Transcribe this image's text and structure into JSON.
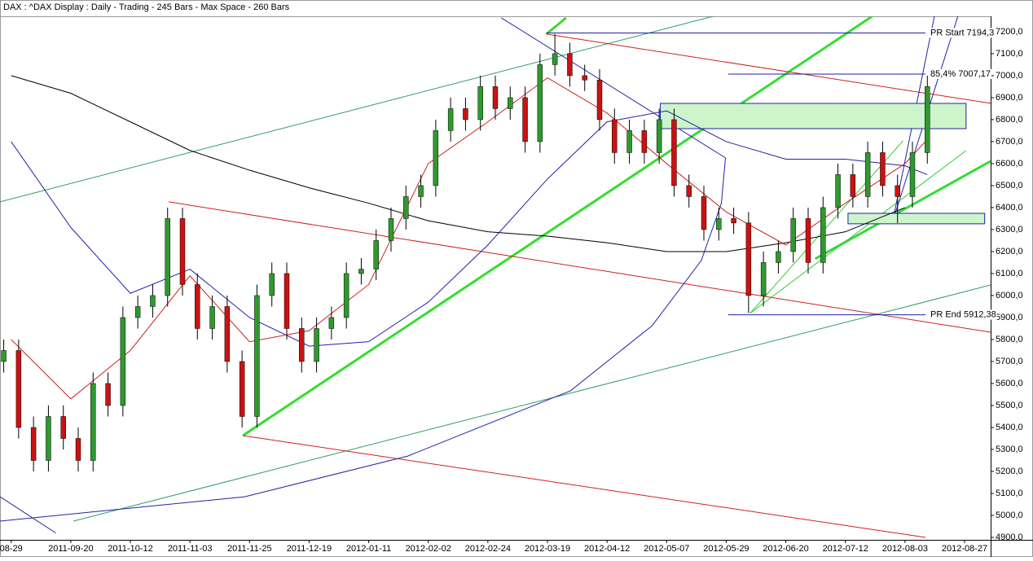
{
  "chart_data": {
    "type": "candlestick",
    "title": "DAX : ^DAX Display :  Daily  - Trading - 245 Bars  - Max Space - 260 Bars",
    "up_color": "#2e9a2e",
    "down_color": "#cc1111",
    "xlim": [
      -3,
      263
    ],
    "ylim": [
      4889,
      7270
    ],
    "xticks": [
      {
        "value": 0,
        "label": "08-29"
      },
      {
        "value": 16,
        "label": "2011-09-20"
      },
      {
        "value": 32,
        "label": "2011-10-12"
      },
      {
        "value": 48,
        "label": "2011-11-03"
      },
      {
        "value": 64,
        "label": "2011-11-25"
      },
      {
        "value": 80,
        "label": "2011-12-19"
      },
      {
        "value": 96,
        "label": "2012-01-11"
      },
      {
        "value": 112,
        "label": "2012-02-02"
      },
      {
        "value": 128,
        "label": "2012-02-24"
      },
      {
        "value": 144,
        "label": "2012-03-19"
      },
      {
        "value": 160,
        "label": "2012-04-12"
      },
      {
        "value": 176,
        "label": "2012-05-07"
      },
      {
        "value": 192,
        "label": "2012-05-29"
      },
      {
        "value": 208,
        "label": "2012-06-20"
      },
      {
        "value": 224,
        "label": "2012-07-12"
      },
      {
        "value": 240,
        "label": "2012-08-03"
      },
      {
        "value": 256,
        "label": "2012-08-27"
      }
    ],
    "yticks": [
      {
        "value": 4900,
        "label": "4900,0"
      },
      {
        "value": 5000,
        "label": "5000,0"
      },
      {
        "value": 5100,
        "label": "5100,0"
      },
      {
        "value": 5200,
        "label": "5200,0"
      },
      {
        "value": 5300,
        "label": "5300,0"
      },
      {
        "value": 5400,
        "label": "5400,0"
      },
      {
        "value": 5500,
        "label": "5500,0"
      },
      {
        "value": 5600,
        "label": "5600,0"
      },
      {
        "value": 5700,
        "label": "5700,0"
      },
      {
        "value": 5800,
        "label": "5800,0"
      },
      {
        "value": 5900,
        "label": "5900,0"
      },
      {
        "value": 6000,
        "label": "6000,0"
      },
      {
        "value": 6100,
        "label": "6100,0"
      },
      {
        "value": 6200,
        "label": "6200,0"
      },
      {
        "value": 6300,
        "label": "6300,0"
      },
      {
        "value": 6400,
        "label": "6400,0"
      },
      {
        "value": 6500,
        "label": "6500,0"
      },
      {
        "value": 6600,
        "label": "6600,0"
      },
      {
        "value": 6700,
        "label": "6700,0"
      },
      {
        "value": 6800,
        "label": "6800,0"
      },
      {
        "value": 6900,
        "label": "6900,0"
      },
      {
        "value": 7000,
        "label": "7000,0"
      },
      {
        "value": 7100,
        "label": "7100,0"
      },
      {
        "value": 7200,
        "label": "7200,0"
      }
    ],
    "x": [
      -2,
      2,
      6,
      10,
      14,
      18,
      22,
      26,
      30,
      34,
      38,
      42,
      46,
      50,
      54,
      58,
      62,
      66,
      70,
      74,
      78,
      82,
      86,
      90,
      94,
      98,
      102,
      106,
      110,
      114,
      118,
      122,
      126,
      130,
      134,
      138,
      142,
      146,
      150,
      154,
      158,
      162,
      166,
      170,
      174,
      178,
      182,
      186,
      190,
      194,
      198,
      202,
      206,
      210,
      214,
      218,
      222,
      226,
      230,
      234,
      238,
      242,
      246
    ],
    "open": [
      5700,
      5750,
      5400,
      5250,
      5450,
      5350,
      5250,
      5600,
      5500,
      5900,
      5950,
      6000,
      6350,
      6050,
      5850,
      5950,
      5700,
      5450,
      6000,
      6100,
      5850,
      5700,
      5850,
      5900,
      6100,
      6120,
      6250,
      6350,
      6450,
      6500,
      6750,
      6850,
      6800,
      6950,
      6850,
      6900,
      6700,
      7050,
      7100,
      7000,
      6980,
      6800,
      6650,
      6750,
      6650,
      6800,
      6500,
      6450,
      6300,
      6350,
      6330,
      6000,
      6150,
      6200,
      6350,
      6150,
      6400,
      6550,
      6450,
      6650,
      6500,
      6450,
      6650
    ],
    "high": [
      5800,
      5800,
      5450,
      5500,
      5500,
      5400,
      5650,
      5650,
      5950,
      6000,
      6050,
      6400,
      6400,
      6100,
      6000,
      6000,
      5750,
      6050,
      6150,
      6150,
      5900,
      5900,
      5950,
      6150,
      6170,
      6300,
      6400,
      6500,
      6550,
      6800,
      6900,
      6900,
      7000,
      7000,
      6950,
      6950,
      7100,
      7190,
      7150,
      7050,
      7030,
      6850,
      6800,
      6800,
      6850,
      6850,
      6550,
      6500,
      6400,
      6400,
      6380,
      6200,
      6250,
      6400,
      6400,
      6450,
      6600,
      6600,
      6700,
      6700,
      6550,
      6700,
      7000
    ],
    "low": [
      5650,
      5350,
      5200,
      5200,
      5300,
      5200,
      5200,
      5450,
      5450,
      5850,
      5900,
      5950,
      6000,
      5800,
      5800,
      5650,
      5400,
      5400,
      5950,
      5800,
      5650,
      5650,
      5800,
      5850,
      6050,
      6070,
      6200,
      6300,
      6400,
      6450,
      6700,
      6750,
      6750,
      6800,
      6800,
      6650,
      6650,
      7000,
      6950,
      6930,
      6750,
      6600,
      6600,
      6600,
      6600,
      6450,
      6400,
      6250,
      6250,
      6280,
      5920,
      5950,
      6100,
      6150,
      6100,
      6100,
      6350,
      6400,
      6400,
      6450,
      6330,
      6400,
      6600
    ],
    "close": [
      5750,
      5400,
      5250,
      5450,
      5350,
      5250,
      5600,
      5500,
      5900,
      5950,
      6000,
      6350,
      6050,
      5850,
      5950,
      5700,
      5450,
      6000,
      6100,
      5850,
      5700,
      5850,
      5900,
      6100,
      6120,
      6250,
      6350,
      6450,
      6500,
      6750,
      6850,
      6800,
      6950,
      6850,
      6900,
      6700,
      7050,
      7100,
      7000,
      6980,
      6800,
      6650,
      6750,
      6650,
      6800,
      6500,
      6450,
      6300,
      6350,
      6330,
      6000,
      6150,
      6200,
      6350,
      6150,
      6400,
      6550,
      6450,
      6650,
      6500,
      6450,
      6650,
      6950
    ],
    "moving_averages": [
      {
        "color": "#000000",
        "x": [
          0,
          16,
          32,
          48,
          64,
          80,
          96,
          112,
          128,
          144,
          160,
          176,
          192,
          208,
          224,
          240
        ],
        "values": [
          7000,
          6920,
          6790,
          6660,
          6570,
          6490,
          6420,
          6340,
          6290,
          6270,
          6240,
          6200,
          6200,
          6240,
          6290,
          6400
        ]
      },
      {
        "color": "#2222aa",
        "x": [
          0,
          16,
          32,
          48,
          64,
          80,
          96,
          112,
          128,
          144,
          160,
          176,
          192,
          208,
          224,
          240,
          246
        ],
        "values": [
          6700,
          6310,
          6010,
          6120,
          5900,
          5770,
          5790,
          5970,
          6230,
          6530,
          6790,
          6840,
          6700,
          6620,
          6620,
          6590,
          6550
        ]
      },
      {
        "color": "#cc2222",
        "x": [
          0,
          16,
          32,
          48,
          64,
          80,
          96,
          112,
          128,
          144,
          160,
          176,
          192,
          208,
          224,
          240,
          246
        ],
        "values": [
          5800,
          5530,
          5750,
          6090,
          5790,
          5840,
          6050,
          6600,
          6790,
          6990,
          6830,
          6600,
          6380,
          6230,
          6420,
          6600,
          6710
        ]
      }
    ],
    "drawings": [
      {
        "color": "#33dd33",
        "width": 3,
        "points": [
          [
            62.2,
            5363
          ],
          [
            231.2,
            7270
          ]
        ]
      },
      {
        "color": "#33dd33",
        "width": 3,
        "points": [
          [
            143.7,
            7189
          ],
          [
            149,
            7263
          ]
        ]
      },
      {
        "color": "#33dd33",
        "width": 3,
        "points": [
          [
            215.9,
            6167
          ],
          [
            263,
            6611
          ]
        ]
      },
      {
        "color": "#33cc33",
        "width": 1,
        "points": [
          [
            198.4,
            5919
          ],
          [
            256.4,
            6659
          ]
        ]
      },
      {
        "color": "#33cc33",
        "width": 1,
        "points": [
          [
            198.4,
            5919
          ],
          [
            239.5,
            6704
          ]
        ]
      },
      {
        "color": "#339966",
        "width": 1,
        "points": [
          [
            -3,
            6426
          ],
          [
            188.5,
            7270
          ]
        ]
      },
      {
        "color": "#339966",
        "width": 1,
        "points": [
          [
            16.7,
            4974
          ],
          [
            263,
            6048
          ]
        ]
      },
      {
        "color": "#cc2222",
        "width": 1,
        "points": [
          [
            42.3,
            6426
          ],
          [
            263,
            5833
          ]
        ]
      },
      {
        "color": "#cc2222",
        "width": 1,
        "points": [
          [
            62.2,
            5363
          ],
          [
            245.5,
            4900
          ]
        ]
      },
      {
        "color": "#cc2222",
        "width": 1,
        "points": [
          [
            143.7,
            7189
          ],
          [
            263,
            6874
          ]
        ]
      },
      {
        "color": "#2222aa",
        "width": 1,
        "points": [
          [
            131.6,
            7263
          ],
          [
            191.8,
            6626
          ]
        ]
      },
      {
        "color": "#2222aa",
        "width": 1,
        "points": [
          [
            -3,
            4974
          ],
          [
            62.7,
            5085
          ],
          [
            106.5,
            5270
          ],
          [
            150.2,
            5567
          ],
          [
            172.1,
            5863
          ],
          [
            185.3,
            6159
          ],
          [
            190.7,
            6419
          ],
          [
            191.8,
            6626
          ]
        ]
      },
      {
        "color": "#2222aa",
        "width": 1,
        "points": [
          [
            236.7,
            6337
          ],
          [
            254.2,
            7270
          ]
        ]
      },
      {
        "color": "#2222aa",
        "width": 1,
        "points": [
          [
            236.7,
            6337
          ],
          [
            247.9,
            7270
          ]
        ]
      },
      {
        "color": "#2222aa",
        "width": 1,
        "points": [
          [
            -3,
            5085
          ],
          [
            12,
            4920
          ]
        ]
      },
      {
        "color": "#2222aa",
        "width": 1,
        "fill": "#ccf5cc",
        "points": [
          [
            174.3,
            6874
          ],
          [
            256.4,
            6874
          ],
          [
            256.4,
            6759
          ],
          [
            174.3,
            6759
          ]
        ]
      },
      {
        "color": "#2222aa",
        "width": 1,
        "fill": "#ccf5cc",
        "points": [
          [
            224.7,
            6374
          ],
          [
            261.4,
            6374
          ],
          [
            261.4,
            6326
          ],
          [
            224.7,
            6326
          ]
        ]
      }
    ],
    "annotations": [
      {
        "label": "PR Start 7194,3",
        "value": 7194.3,
        "start": 143.7,
        "end": 245.5
      },
      {
        "label": "85,4% 7007,17",
        "value": 7007.17,
        "start": 192.5,
        "end": 245.5
      },
      {
        "label": "PR End 5912,38",
        "value": 5912.38,
        "start": 192.5,
        "end": 245.5
      }
    ]
  }
}
